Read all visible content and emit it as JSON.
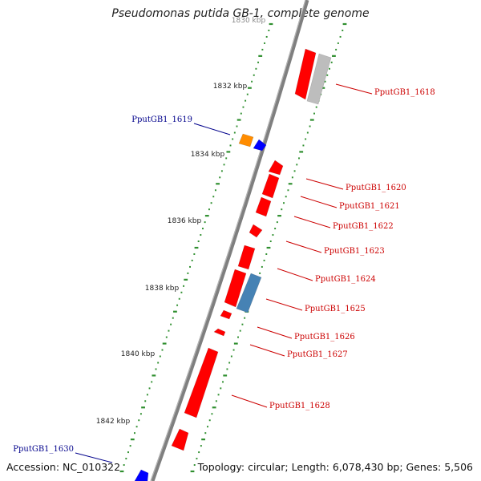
{
  "title": "Pseudomonas putida GB-1, complete genome",
  "accession_text": "Accession: NC_010322",
  "summary_text": "Topology: circular; Length: 6,078,430 bp; Genes: 5,506",
  "colors": {
    "backbone": "#7f7f7f",
    "tick_minor": "#2f8f2f",
    "gene_red": "#ff0000",
    "gene_gray": "#bdbdbd",
    "gene_blue": "#0000ff",
    "gene_orange": "#ff8c00",
    "gene_steel": "#4682b4",
    "label_red": "#cc0000",
    "label_blue": "#00008b"
  },
  "kbp_labels": [
    {
      "text": "1830 kbp"
    },
    {
      "text": "1832 kbp"
    },
    {
      "text": "1834 kbp"
    },
    {
      "text": "1836 kbp"
    },
    {
      "text": "1838 kbp"
    },
    {
      "text": "1840 kbp"
    },
    {
      "text": "1842 kbp"
    }
  ],
  "gene_labels": [
    {
      "text": "PputGB1_1618",
      "color": "red"
    },
    {
      "text": "PputGB1_1619",
      "color": "blue"
    },
    {
      "text": "PputGB1_1620",
      "color": "red"
    },
    {
      "text": "PputGB1_1621",
      "color": "red"
    },
    {
      "text": "PputGB1_1622",
      "color": "red"
    },
    {
      "text": "PputGB1_1623",
      "color": "red"
    },
    {
      "text": "PputGB1_1624",
      "color": "red"
    },
    {
      "text": "PputGB1_1625",
      "color": "red"
    },
    {
      "text": "PputGB1_1626",
      "color": "red"
    },
    {
      "text": "PputGB1_1627",
      "color": "red"
    },
    {
      "text": "PputGB1_1628",
      "color": "red"
    },
    {
      "text": "PputGB1_1630",
      "color": "blue"
    }
  ]
}
